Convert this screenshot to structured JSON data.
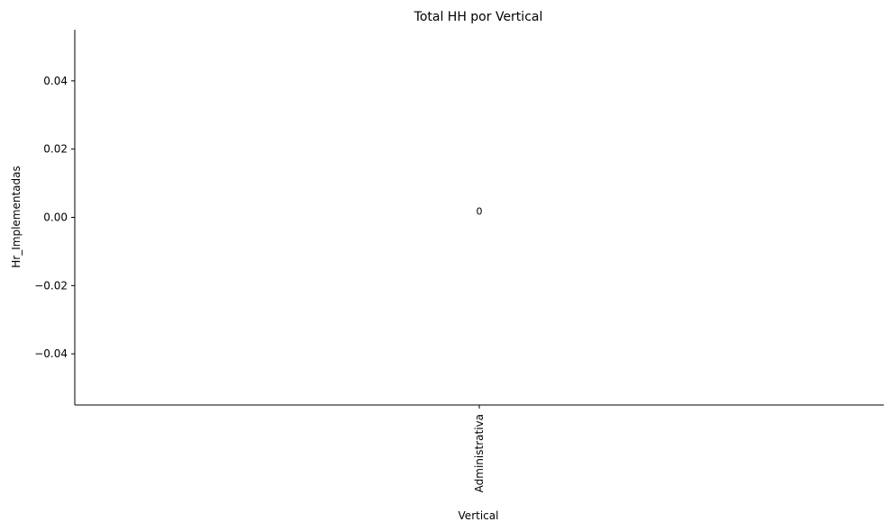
{
  "chart_data": {
    "type": "bar",
    "title": "Total HH por Vertical",
    "xlabel": "Vertical",
    "ylabel": "Hr_Implementadas",
    "categories": [
      "Administrativa"
    ],
    "values": [
      0
    ],
    "data_labels": [
      "0"
    ],
    "ylim": [
      -0.055,
      0.055
    ],
    "yticks": [
      -0.04,
      -0.02,
      0.0,
      0.02,
      0.04
    ],
    "ytick_labels": [
      "−0.04",
      "−0.02",
      "0.00",
      "0.02",
      "0.04"
    ],
    "bar_color": "#1f77b4",
    "grid": false,
    "legend": "none"
  }
}
